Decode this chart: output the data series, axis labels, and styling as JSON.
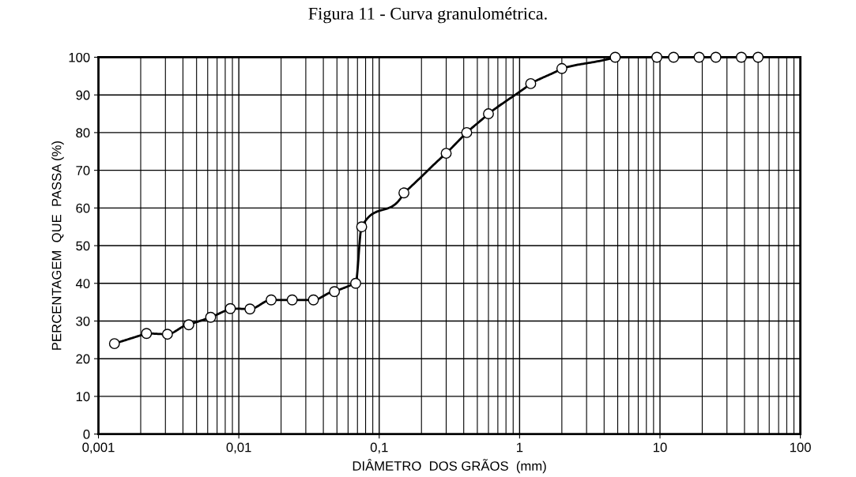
{
  "chart_data": {
    "type": "line",
    "title": "Figura 11 - Curva granulométrica.",
    "xlabel": "DIÂMETRO  DOS GRÃOS  (mm)",
    "ylabel": "PERCENTAGEM  QUE  PASSA (%)",
    "log": "x",
    "xlim": [
      0.001,
      100
    ],
    "xticks": [
      {
        "value": 0.001,
        "label": "0,001"
      },
      {
        "value": 0.01,
        "label": "0,01"
      },
      {
        "value": 0.1,
        "label": "0,1"
      },
      {
        "value": 1,
        "label": "1"
      },
      {
        "value": 10,
        "label": "10"
      },
      {
        "value": 100,
        "label": "100"
      }
    ],
    "ylim": [
      0,
      100
    ],
    "yticks": [
      0,
      10,
      20,
      30,
      40,
      50,
      60,
      70,
      80,
      90,
      100
    ],
    "grid": true,
    "marker": "circle",
    "line_style": "solid",
    "x": [
      0.0013,
      0.0022,
      0.0031,
      0.0044,
      0.0063,
      0.0087,
      0.012,
      0.017,
      0.024,
      0.034,
      0.048,
      0.068,
      0.075,
      0.15,
      0.3,
      0.42,
      0.6,
      1.2,
      2.0,
      4.8,
      9.5,
      12.5,
      19,
      25,
      38,
      50
    ],
    "series": [
      {
        "color": "#000000",
        "values": [
          24,
          26.7,
          26.5,
          29,
          31,
          33.3,
          33.2,
          35.6,
          35.6,
          35.6,
          37.8,
          40,
          55,
          64,
          74.5,
          80,
          85,
          93,
          97,
          100,
          100,
          100,
          100,
          100,
          100,
          100
        ]
      }
    ]
  }
}
